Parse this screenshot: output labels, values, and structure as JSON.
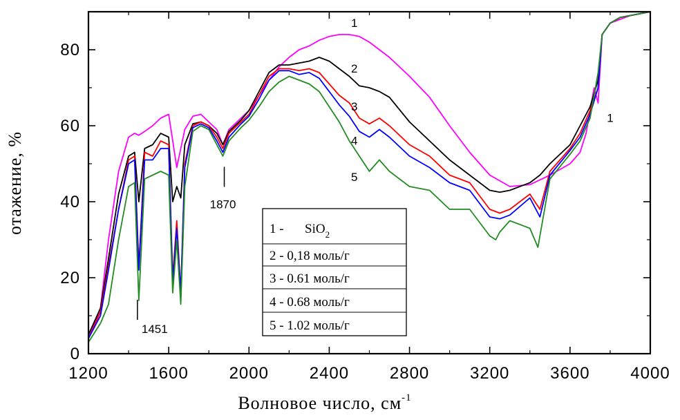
{
  "chart_data": {
    "type": "line",
    "xlabel": "Волновое число, см",
    "xlabel_sup": "-1",
    "ylabel": "отажение, %",
    "xlim": [
      1200,
      4000
    ],
    "ylim": [
      0,
      90
    ],
    "xticks": [
      "1200",
      "1600",
      "2000",
      "2400",
      "2800",
      "3200",
      "3600",
      "4000"
    ],
    "yticks": [
      "0",
      "20",
      "40",
      "60",
      "80"
    ],
    "legend": {
      "placement": "center",
      "entries": [
        {
          "prefix": "1 -",
          "name": "SiO",
          "sub": "2"
        },
        {
          "text": "2 - 0,18 моль/г"
        },
        {
          "text": "3 - 0.61 моль/г"
        },
        {
          "text": "4 - 0.68 моль/г"
        },
        {
          "text": "5 - 1.02 моль/г"
        }
      ]
    },
    "annotations": [
      {
        "text": "1451",
        "x": 1451,
        "y": 8
      },
      {
        "text": "1870",
        "x": 1870,
        "y": 43
      },
      {
        "text": "1",
        "x": 2525,
        "y": 86
      },
      {
        "text": "2",
        "x": 2525,
        "y": 74
      },
      {
        "text": "3",
        "x": 2525,
        "y": 64
      },
      {
        "text": "4",
        "x": 2525,
        "y": 55
      },
      {
        "text": "5",
        "x": 2525,
        "y": 45.5
      },
      {
        "text": "1",
        "x": 3800,
        "y": 61
      }
    ],
    "series": [
      {
        "label": "1",
        "color": "#ff00ff",
        "x": [
          1200,
          1260,
          1300,
          1350,
          1400,
          1430,
          1451,
          1480,
          1520,
          1560,
          1600,
          1640,
          1680,
          1720,
          1760,
          1800,
          1840,
          1870,
          1900,
          1960,
          2000,
          2050,
          2100,
          2150,
          2200,
          2250,
          2300,
          2350,
          2400,
          2450,
          2500,
          2550,
          2600,
          2650,
          2700,
          2800,
          2900,
          3000,
          3100,
          3200,
          3300,
          3400,
          3500,
          3600,
          3650,
          3680,
          3720,
          3740,
          3760,
          3800,
          3850,
          3900,
          3950,
          4000
        ],
        "y": [
          4,
          12,
          30,
          48,
          57,
          58,
          57.5,
          58.5,
          60,
          62,
          63,
          49,
          59,
          62.5,
          63,
          61,
          59,
          55,
          59,
          62,
          64,
          68,
          72,
          75.5,
          78,
          80,
          81,
          82.5,
          83.5,
          84,
          84,
          83.5,
          82,
          80,
          78,
          73,
          67.5,
          60,
          53,
          47,
          44,
          44.5,
          47,
          50,
          53,
          58,
          70,
          66,
          84,
          87,
          88,
          89,
          89.5,
          90
        ]
      },
      {
        "label": "2",
        "color": "#000000",
        "x": [
          1200,
          1260,
          1300,
          1350,
          1400,
          1430,
          1451,
          1480,
          1520,
          1560,
          1600,
          1620,
          1640,
          1660,
          1680,
          1720,
          1760,
          1800,
          1840,
          1870,
          1900,
          1960,
          2000,
          2050,
          2100,
          2150,
          2200,
          2250,
          2300,
          2350,
          2400,
          2450,
          2500,
          2550,
          2600,
          2650,
          2700,
          2800,
          2900,
          3000,
          3100,
          3200,
          3250,
          3300,
          3400,
          3450,
          3500,
          3600,
          3650,
          3700,
          3740,
          3760,
          3800,
          3850,
          3900,
          3950,
          4000
        ],
        "y": [
          5,
          12,
          25,
          42,
          52,
          53,
          40,
          54,
          55,
          58,
          57,
          40,
          44,
          41,
          55,
          60.5,
          61,
          60,
          58,
          55,
          58.5,
          61.5,
          64,
          69,
          74,
          76,
          76,
          76.5,
          77,
          78,
          77,
          75,
          73,
          70.5,
          70,
          69,
          67.5,
          61,
          56,
          51,
          47,
          43,
          42.5,
          43,
          45,
          47,
          50,
          55,
          60,
          65,
          72,
          84,
          87,
          88.5,
          89,
          89.5,
          90
        ]
      },
      {
        "label": "3",
        "color": "#ff0000",
        "x": [
          1200,
          1260,
          1300,
          1350,
          1400,
          1430,
          1451,
          1480,
          1520,
          1560,
          1600,
          1620,
          1640,
          1660,
          1680,
          1720,
          1760,
          1800,
          1840,
          1870,
          1900,
          1960,
          2000,
          2050,
          2100,
          2150,
          2200,
          2250,
          2300,
          2350,
          2400,
          2450,
          2500,
          2550,
          2600,
          2650,
          2700,
          2800,
          2900,
          3000,
          3100,
          3200,
          3250,
          3300,
          3400,
          3450,
          3500,
          3600,
          3650,
          3700,
          3740,
          3760,
          3800,
          3850,
          3900,
          3950,
          4000
        ],
        "y": [
          4,
          11,
          23,
          38,
          51,
          52,
          23,
          53,
          52,
          56,
          55,
          20,
          35,
          16,
          50,
          60,
          61,
          60,
          57,
          54,
          58,
          61,
          63,
          68,
          73,
          75,
          75,
          74.5,
          75,
          74,
          71,
          68,
          66,
          62,
          60.5,
          62,
          60,
          55,
          52,
          47,
          45,
          38,
          37,
          38,
          42,
          38,
          48,
          54,
          58,
          64,
          70,
          84,
          87,
          88.5,
          89,
          89.5,
          90
        ]
      },
      {
        "label": "4",
        "color": "#0000ff",
        "x": [
          1200,
          1260,
          1300,
          1350,
          1400,
          1430,
          1451,
          1480,
          1520,
          1560,
          1600,
          1620,
          1640,
          1660,
          1680,
          1720,
          1760,
          1800,
          1840,
          1870,
          1900,
          1960,
          2000,
          2050,
          2100,
          2150,
          2200,
          2250,
          2300,
          2350,
          2400,
          2450,
          2500,
          2550,
          2600,
          2650,
          2700,
          2800,
          2900,
          3000,
          3100,
          3200,
          3250,
          3300,
          3400,
          3450,
          3500,
          3600,
          3650,
          3700,
          3740,
          3760,
          3800,
          3850,
          3900,
          3950,
          4000
        ],
        "y": [
          4,
          10,
          22,
          38,
          50,
          51,
          22,
          51,
          51,
          54,
          54,
          19,
          33,
          16,
          49,
          59.5,
          60.5,
          59.5,
          56,
          53,
          57,
          60.5,
          62.5,
          67,
          72,
          74.5,
          74.5,
          73.5,
          74,
          72.5,
          69,
          65.5,
          62.5,
          58.5,
          57,
          59,
          57,
          52,
          49,
          45,
          43,
          36,
          35.5,
          36.5,
          41,
          36,
          47,
          53.5,
          57,
          63,
          70,
          84,
          87,
          88.5,
          89,
          89.5,
          90
        ]
      },
      {
        "label": "5",
        "color": "#228b22",
        "x": [
          1200,
          1260,
          1300,
          1350,
          1400,
          1430,
          1451,
          1480,
          1520,
          1560,
          1600,
          1620,
          1640,
          1660,
          1680,
          1720,
          1760,
          1800,
          1840,
          1870,
          1900,
          1960,
          2000,
          2050,
          2100,
          2150,
          2200,
          2250,
          2300,
          2350,
          2400,
          2450,
          2500,
          2550,
          2600,
          2650,
          2700,
          2800,
          2900,
          3000,
          3100,
          3200,
          3230,
          3250,
          3300,
          3400,
          3440,
          3500,
          3600,
          3650,
          3700,
          3740,
          3760,
          3800,
          3850,
          3900,
          3950,
          4000
        ],
        "y": [
          3,
          8,
          13,
          30,
          44,
          45,
          14,
          46,
          47,
          48,
          47,
          16,
          30,
          13,
          44,
          58.5,
          60,
          59,
          55,
          52,
          56,
          59.5,
          61.5,
          65,
          69,
          71.5,
          73,
          72,
          71,
          69,
          65,
          61,
          56,
          52,
          48,
          51,
          48,
          44,
          43,
          38,
          38,
          31,
          30,
          32,
          35,
          33,
          28,
          46,
          52.5,
          56,
          62,
          74,
          84,
          87,
          88.5,
          89,
          89.5,
          90
        ]
      }
    ]
  }
}
